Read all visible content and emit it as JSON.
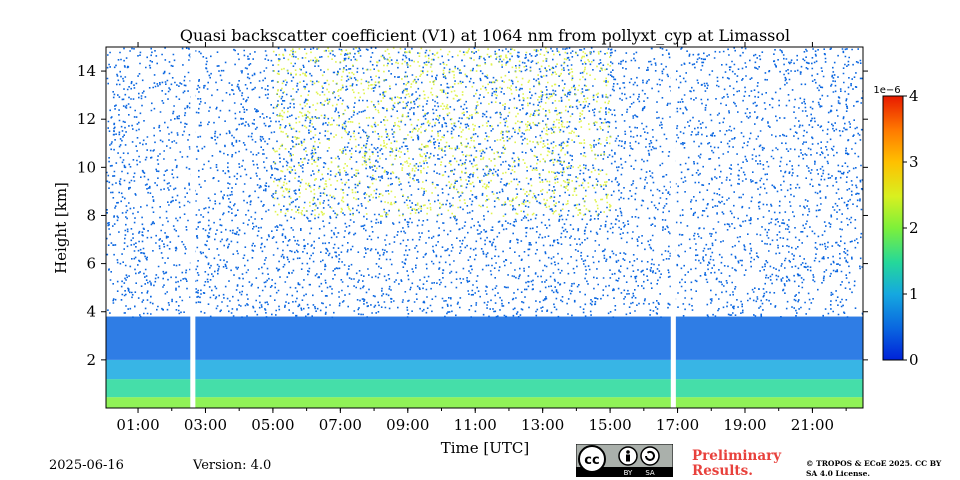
{
  "chart_data": {
    "type": "heatmap",
    "title": "Quasi backscatter coefficient (V1) at 1064 nm from pollyxt_cyp at Limassol",
    "xlabel": "Time [UTC]",
    "ylabel": "Height [km]",
    "x_ticks": [
      "01:00",
      "03:00",
      "05:00",
      "07:00",
      "09:00",
      "11:00",
      "13:00",
      "15:00",
      "17:00",
      "19:00",
      "21:00"
    ],
    "y_ticks": [
      "2",
      "4",
      "6",
      "8",
      "10",
      "12",
      "14"
    ],
    "xlim_hours": [
      0.05,
      22.5
    ],
    "ylim_km": [
      0.0,
      15.0
    ],
    "colorbar": {
      "min": 0,
      "max": 4,
      "exponent_label": "1e−6",
      "ticks": [
        "0",
        "1",
        "2",
        "3",
        "4"
      ],
      "colors": [
        "#0022d8",
        "#0a66e0",
        "#15a8e0",
        "#25d89a",
        "#7df03a",
        "#d8f020",
        "#ffc000",
        "#ff7a00",
        "#e81a00"
      ]
    },
    "data_gaps_hours": [
      [
        2.55,
        2.7
      ],
      [
        16.8,
        16.95
      ]
    ],
    "layers": [
      {
        "name": "",
        "start_h": 0.05,
        "end_h": 22.5,
        "bottom_km": 0.0,
        "top_km": 0.45,
        "value": 2.0
      },
      {
        "name": "",
        "start_h": 0.05,
        "end_h": 22.5,
        "bottom_km": 0.45,
        "top_km": 1.2,
        "value": 1.4
      },
      {
        "name": "",
        "start_h": 0.05,
        "end_h": 22.5,
        "bottom_km": 1.2,
        "top_km": 2.0,
        "value": 0.9
      },
      {
        "name": "",
        "start_h": 0.05,
        "end_h": 22.5,
        "bottom_km": 2.0,
        "top_km": 3.8,
        "value": 0.5
      }
    ]
  },
  "footer": {
    "date": "2025-06-16",
    "version": "Version: 4.0",
    "preliminary": "Preliminary Results.",
    "license": "© TROPOS & ECoE 2025. CC BY SA 4.0 License.",
    "cc_label": "cc",
    "by_label": "BY",
    "sa_label": "SA"
  }
}
